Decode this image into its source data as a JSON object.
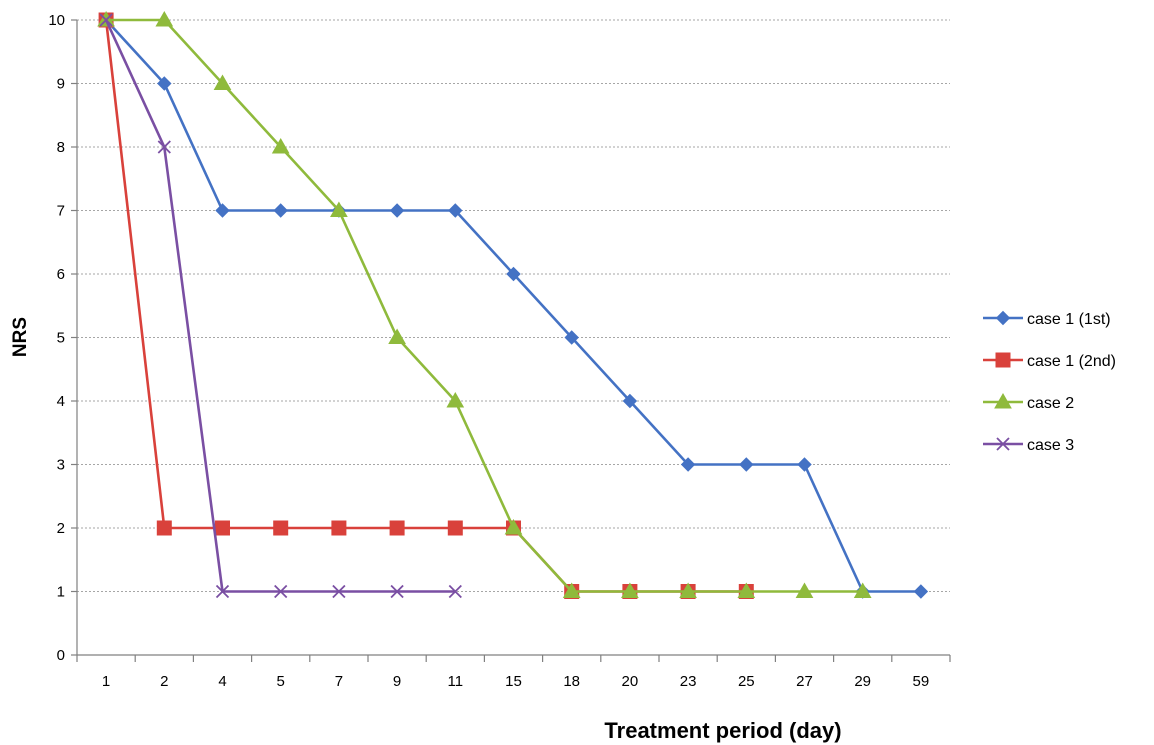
{
  "chart_data": {
    "type": "line",
    "title": "",
    "xlabel": "Treatment period (day)",
    "ylabel": "NRS",
    "categories": [
      "1",
      "2",
      "4",
      "5",
      "7",
      "9",
      "11",
      "15",
      "18",
      "20",
      "23",
      "25",
      "27",
      "29",
      "59"
    ],
    "ylim": [
      0,
      10
    ],
    "yticks": [
      0,
      1,
      2,
      3,
      4,
      5,
      6,
      7,
      8,
      9,
      10
    ],
    "grid": "horizontal",
    "legend_position": "right",
    "series": [
      {
        "name": "case 1 (1st)",
        "color": "#4472c4",
        "marker": "diamond",
        "values": [
          10,
          9,
          7,
          7,
          7,
          7,
          7,
          6,
          5,
          4,
          3,
          3,
          3,
          1,
          1
        ]
      },
      {
        "name": "case 1 (2nd)",
        "color": "#d9413b",
        "marker": "square",
        "values": [
          10,
          2,
          2,
          2,
          2,
          2,
          2,
          2,
          1,
          1,
          1,
          1,
          null,
          null,
          null
        ]
      },
      {
        "name": "case 2",
        "color": "#8fba3c",
        "marker": "triangle",
        "values": [
          10,
          10,
          9,
          8,
          7,
          5,
          4,
          2,
          1,
          1,
          1,
          1,
          1,
          1,
          null
        ]
      },
      {
        "name": "case 3",
        "color": "#7a4fa3",
        "marker": "x",
        "values": [
          10,
          8,
          1,
          1,
          1,
          1,
          1,
          null,
          null,
          null,
          null,
          null,
          null,
          null,
          null
        ]
      }
    ]
  }
}
